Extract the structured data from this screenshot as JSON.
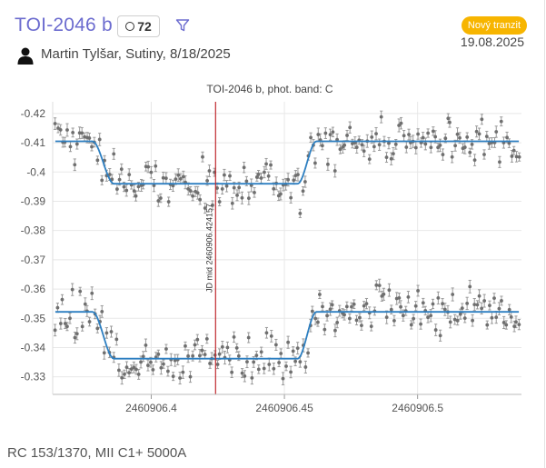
{
  "header": {
    "title": "TOI-2046 b",
    "count": "72",
    "badge": "Nový tranzit",
    "date": "19.08.2025",
    "observer": "Martin Tylšar, Sutiny, 8/18/2025"
  },
  "footer": {
    "text": "RC 153/1370, MII C1+ 5000A"
  },
  "colors": {
    "title": "#6c6ccf",
    "badge": "#f7b500",
    "fit": "#2d7fc1",
    "points": "#6f6f6f",
    "midline": "#c0282d"
  },
  "icons": {
    "count": "circle-outline-icon",
    "filter": "funnel-icon",
    "observer": "person-icon"
  },
  "chart_data": {
    "type": "scatter",
    "title": "TOI-2046 b, phot. band: C",
    "xlabel": "",
    "ylabel": "",
    "xlim": [
      2460906.363,
      2460906.539
    ],
    "ylim": [
      -0.424,
      -0.324
    ],
    "y_inverted": true,
    "grid": true,
    "x_ticks": [
      2460906.4,
      2460906.45,
      2460906.5
    ],
    "x_tick_labels": [
      "2460906.4",
      "2460906.45",
      "2460906.5"
    ],
    "y_ticks": [
      -0.42,
      -0.41,
      -0.4,
      -0.39,
      -0.38,
      -0.37,
      -0.36,
      -0.35,
      -0.34,
      -0.33
    ],
    "y_tick_labels": [
      "-0.42",
      "-0.41",
      "-0.4",
      "-0.39",
      "-0.38",
      "-0.37",
      "-0.36",
      "-0.35",
      "-0.34",
      "-0.33"
    ],
    "mid_transit": {
      "x": 2460906.424157,
      "label": "JD mid 2460906.424157"
    },
    "series": [
      {
        "offset": -0.4105,
        "depth": 0.0145,
        "ingress": [
          2460906.378,
          2460906.386
        ],
        "egress": [
          2460906.455,
          2460906.462
        ],
        "noise": 0.0042,
        "errorbar": 0.0017,
        "n": 190,
        "seed": 11
      },
      {
        "offset": -0.3522,
        "depth": 0.016,
        "ingress": [
          2460906.378,
          2460906.386
        ],
        "egress": [
          2460906.455,
          2460906.462
        ],
        "noise": 0.0042,
        "errorbar": 0.0017,
        "n": 190,
        "seed": 29
      }
    ]
  }
}
